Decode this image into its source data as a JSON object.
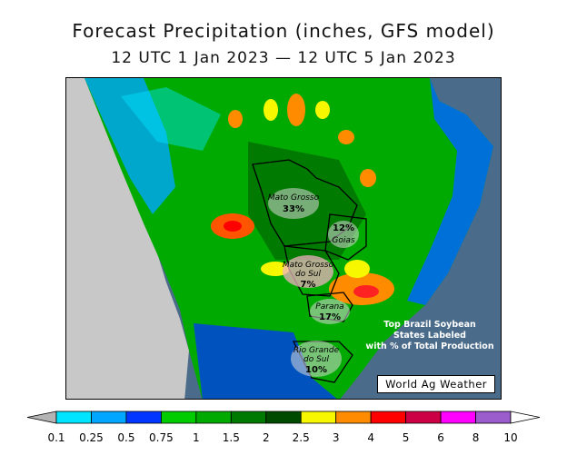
{
  "title": "Forecast Precipitation (inches, GFS model)",
  "subtitle": "12 UTC 1 Jan 2023 — 12 UTC 5 Jan 2023",
  "map": {
    "region": "Brazil",
    "ocean_color": "#4a6b8a",
    "land_outside_color": "#c8c8c8",
    "states": [
      {
        "name": "Mato Grosso",
        "share": "33%"
      },
      {
        "name": "Goias",
        "share": "12%"
      },
      {
        "name": "Mato Grosso do Sul",
        "name_line1": "Mato Grosso",
        "name_line2": "do Sul",
        "share": "7%"
      },
      {
        "name": "Parana",
        "share": "17%"
      },
      {
        "name": "Rio Grande do Sul",
        "name_line1": "Rio Grande",
        "name_line2": "do Sul",
        "share": "10%"
      }
    ],
    "note_line1": "Top Brazil Soybean",
    "note_line2": "States Labeled",
    "note_line3": "with % of Total Production",
    "credit": "World Ag Weather"
  },
  "legend": {
    "ticks": [
      "0.1",
      "0.25",
      "0.5",
      "0.75",
      "1",
      "1.5",
      "2",
      "2.5",
      "3",
      "4",
      "5",
      "6",
      "8",
      "10"
    ],
    "colors": [
      "#b4b4b4",
      "#00e4ff",
      "#00a6ff",
      "#0036ff",
      "#00cc00",
      "#00aa00",
      "#007a00",
      "#004a00",
      "#f7f700",
      "#ff8c00",
      "#ff0000",
      "#cc0044",
      "#ff00ff",
      "#9b5ccc",
      "#ffffff"
    ]
  }
}
